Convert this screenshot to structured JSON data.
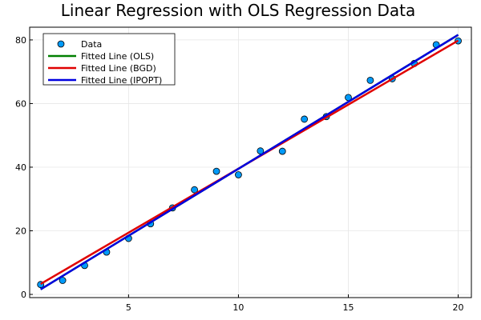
{
  "chart_data": {
    "type": "scatter",
    "title": "Linear Regression with OLS Regression Data",
    "xlabel": "",
    "ylabel": "",
    "xlim": [
      0.5,
      20.6
    ],
    "ylim": [
      -1,
      84
    ],
    "xticks": [
      5,
      10,
      15,
      20
    ],
    "yticks": [
      0,
      20,
      40,
      60,
      80
    ],
    "grid": true,
    "legend_position": "top-left",
    "scatter": {
      "name": "Data",
      "color": "#009af9",
      "x": [
        1,
        2,
        3,
        4,
        5,
        6,
        7,
        8,
        9,
        10,
        11,
        12,
        13,
        14,
        15,
        16,
        17,
        18,
        19,
        20
      ],
      "y": [
        3.1,
        4.4,
        9.1,
        13.3,
        17.6,
        22.2,
        27.2,
        32.9,
        38.7,
        37.6,
        45.1,
        45.0,
        55.1,
        55.9,
        61.9,
        67.3,
        67.8,
        72.6,
        78.5,
        79.7
      ]
    },
    "lines": [
      {
        "name": "Fitted Line (OLS)",
        "color": "#008000",
        "x": [
          1,
          20
        ],
        "y": [
          1.6,
          81.6
        ]
      },
      {
        "name": "Fitted Line (BGD)",
        "color": "#e00000",
        "x": [
          1,
          20
        ],
        "y": [
          3.3,
          79.8
        ]
      },
      {
        "name": "Fitted Line (IPOPT)",
        "color": "#0000e0",
        "x": [
          1,
          20
        ],
        "y": [
          1.6,
          81.6
        ]
      }
    ]
  }
}
